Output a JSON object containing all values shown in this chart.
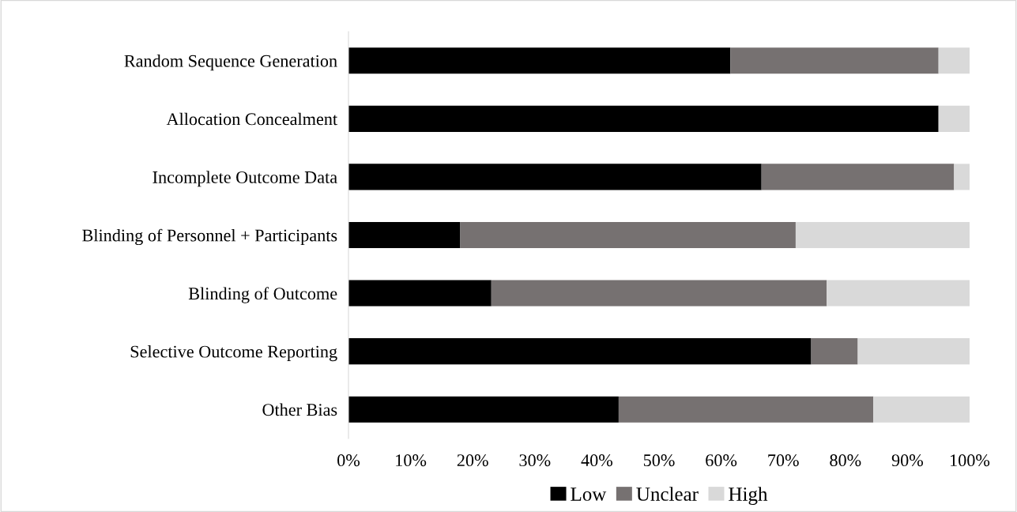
{
  "chart_data": {
    "type": "bar",
    "orientation": "horizontal",
    "stacked": true,
    "categories": [
      "Random Sequence Generation",
      "Allocation Concealment",
      "Incomplete Outcome Data",
      "Blinding of Personnel + Participants",
      "Blinding of Outcome",
      "Selective Outcome Reporting",
      "Other Bias"
    ],
    "series": [
      {
        "name": "Low",
        "color": "#000000",
        "values": [
          61.5,
          95,
          66.5,
          18,
          23,
          74.5,
          43.5
        ]
      },
      {
        "name": "Unclear",
        "color": "#767171",
        "values": [
          33.5,
          0,
          31,
          54,
          54,
          7.5,
          41
        ]
      },
      {
        "name": "High",
        "color": "#d9d9d9",
        "values": [
          5,
          5,
          2.5,
          28,
          23,
          18,
          15.5
        ]
      }
    ],
    "xlim": [
      0,
      100
    ],
    "xticks": [
      {
        "value": 0,
        "label": "0%"
      },
      {
        "value": 10,
        "label": "10%"
      },
      {
        "value": 20,
        "label": "20%"
      },
      {
        "value": 30,
        "label": "30%"
      },
      {
        "value": 40,
        "label": "40%"
      },
      {
        "value": 50,
        "label": "50%"
      },
      {
        "value": 60,
        "label": "60%"
      },
      {
        "value": 70,
        "label": "70%"
      },
      {
        "value": 80,
        "label": "80%"
      },
      {
        "value": 90,
        "label": "90%"
      },
      {
        "value": 100,
        "label": "100%"
      }
    ],
    "grid": false,
    "legend": "bottom"
  }
}
